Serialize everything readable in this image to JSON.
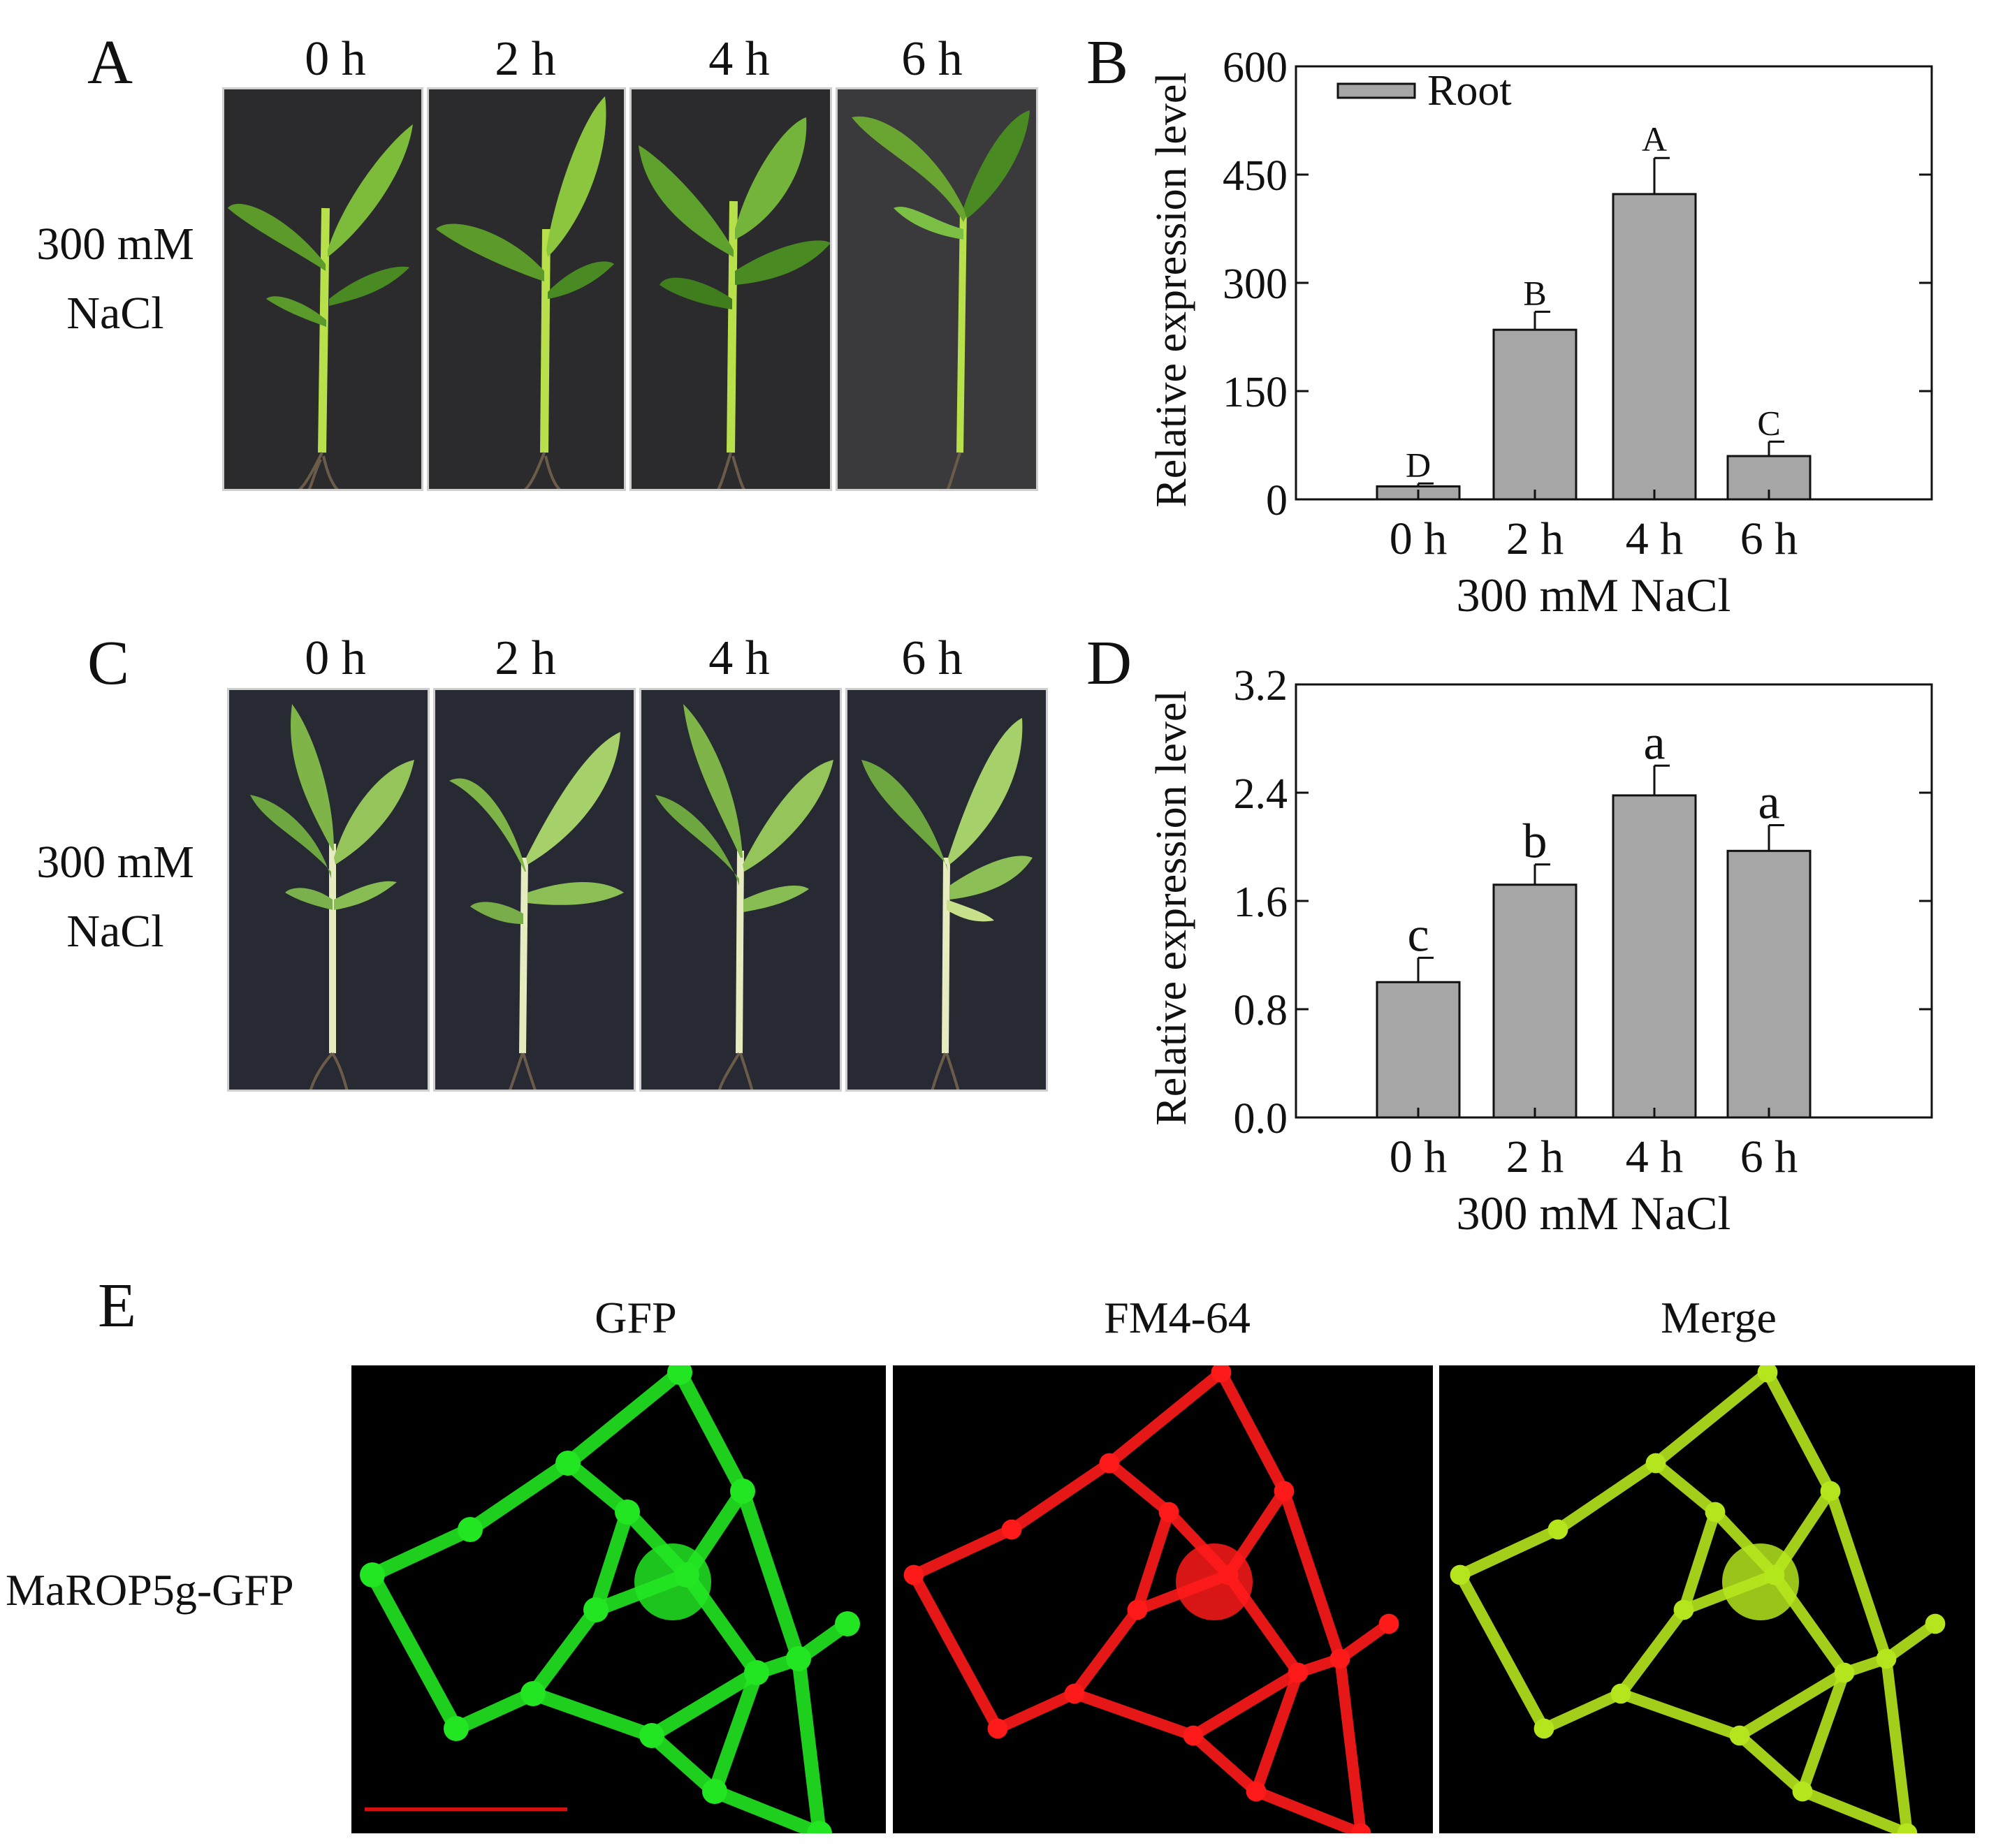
{
  "panelA": {
    "letter": "A",
    "time_labels": [
      "0 h",
      "2 h",
      "4 h",
      "6 h"
    ],
    "treatment_line1": "300 mM",
    "treatment_line2": "NaCl"
  },
  "panelC": {
    "letter": "C",
    "time_labels": [
      "0 h",
      "2 h",
      "4 h",
      "6 h"
    ],
    "treatment_line1": "300 mM",
    "treatment_line2": "NaCl"
  },
  "panelE": {
    "letter": "E",
    "channel_titles": [
      "GFP",
      "FM4-64",
      "Merge"
    ],
    "row_label": "MaROP5g-GFP",
    "scale_bar_color": "#d41010",
    "channel_colors": [
      "#22e622",
      "#ff1a1a",
      "#b5e61d"
    ]
  },
  "chart_data": [
    {
      "panel": "B",
      "type": "bar",
      "categories": [
        "0 h",
        "2 h",
        "4 h",
        "6 h"
      ],
      "series": [
        {
          "name": "Root",
          "values": [
            18,
            235,
            423,
            60
          ],
          "errors": [
            4,
            25,
            50,
            20
          ],
          "letters": [
            "D",
            "B",
            "A",
            "C"
          ]
        }
      ],
      "xlabel": "300 mM NaCl",
      "ylabel": "Relative expression level",
      "ylim": [
        0,
        600
      ],
      "yticks": [
        "0",
        "150",
        "300",
        "450",
        "600"
      ],
      "legend": "top-left",
      "bar_color": "#a6a6a6",
      "grid": false
    },
    {
      "panel": "D",
      "type": "bar",
      "categories": [
        "0 h",
        "2 h",
        "4 h",
        "6 h"
      ],
      "series": [
        {
          "values": [
            1.0,
            1.72,
            2.38,
            1.97
          ],
          "errors": [
            0.18,
            0.15,
            0.22,
            0.19
          ],
          "letters": [
            "c",
            "b",
            "a",
            "a"
          ]
        }
      ],
      "xlabel": "300 mM NaCl",
      "ylabel": "Relative expression level",
      "ylim": [
        0,
        3.2
      ],
      "yticks": [
        "0.0",
        "0.8",
        "1.6",
        "2.4",
        "3.2"
      ],
      "bar_color": "#a6a6a6",
      "grid": false
    }
  ]
}
